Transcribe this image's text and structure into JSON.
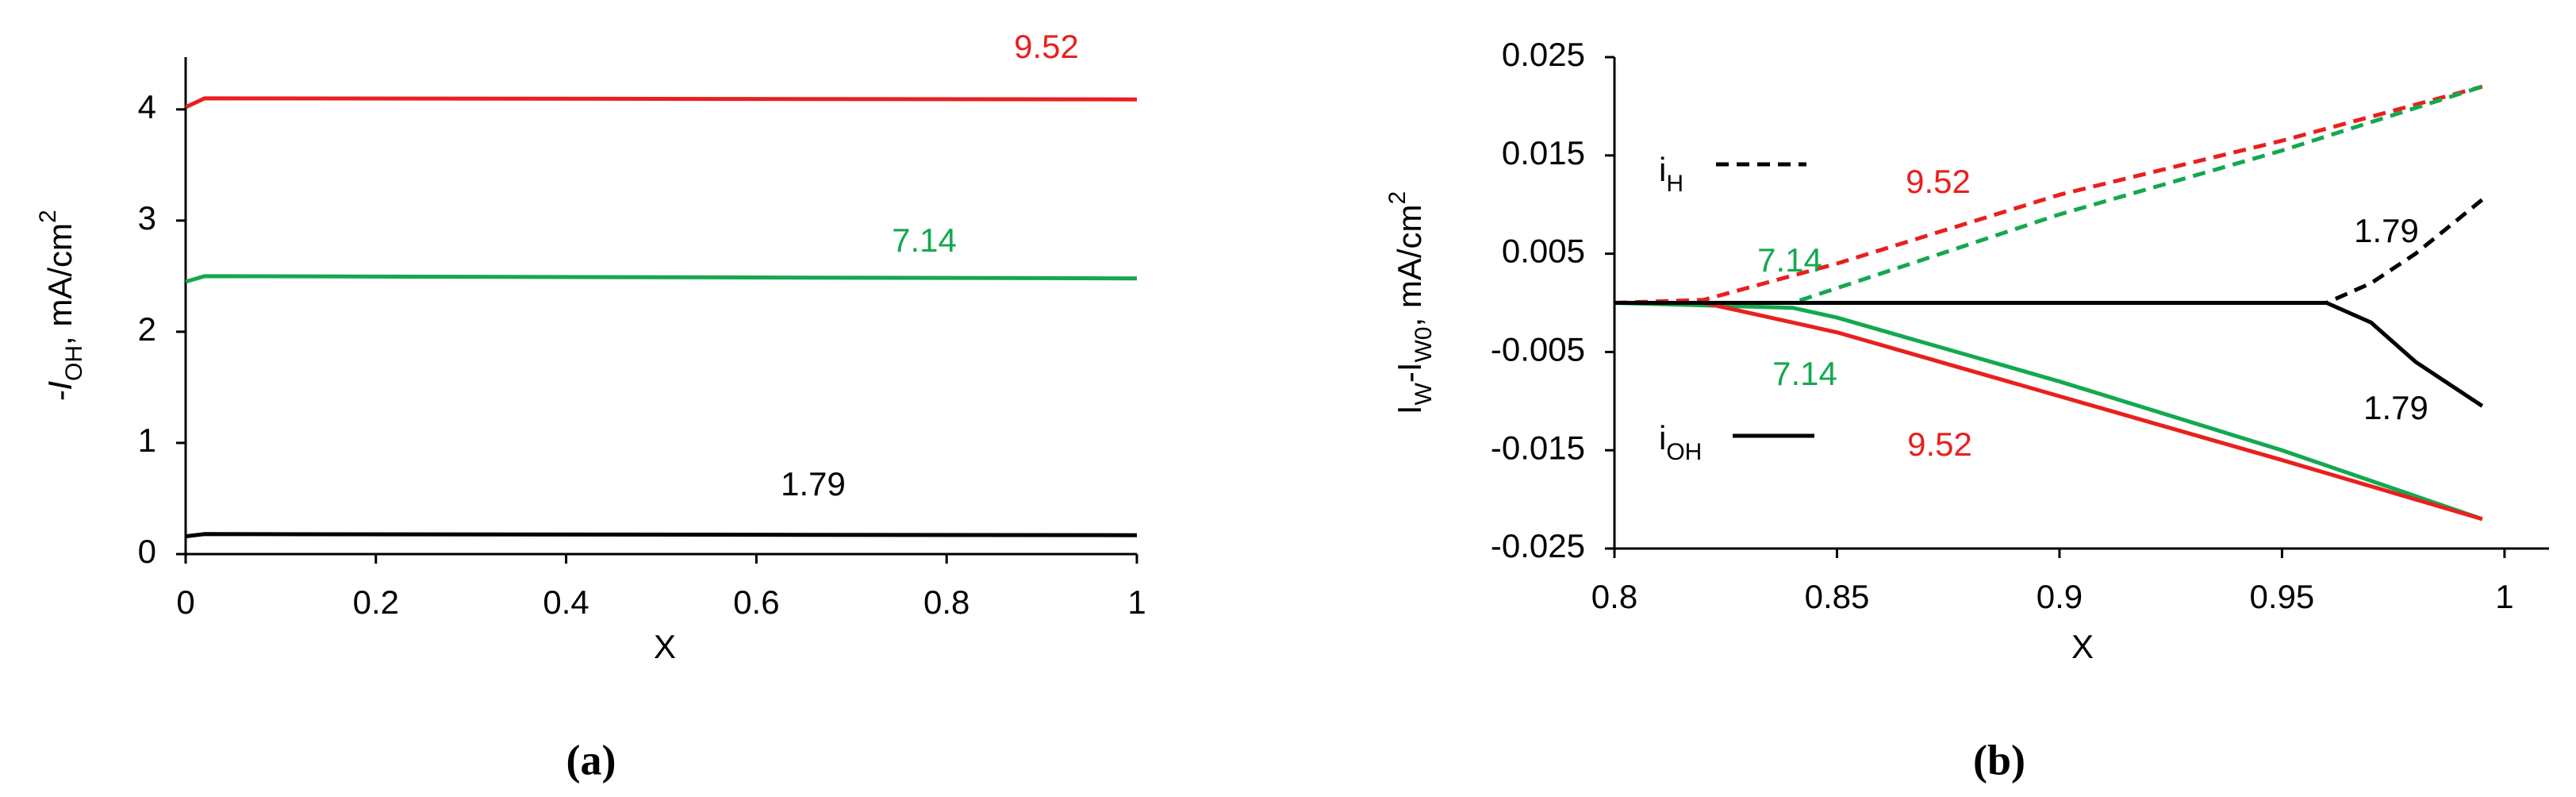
{
  "chart_data": [
    {
      "type": "line",
      "caption": "(a)",
      "x_label": "X",
      "y_label_parts": [
        {
          "text": "-I",
          "style": "italic"
        },
        {
          "text": "OH",
          "style": "sub"
        },
        {
          "text": ",  mA/cm",
          "style": null
        },
        {
          "text": "2",
          "style": "sup"
        }
      ],
      "xlim": [
        0,
        1
      ],
      "xticks": [
        0,
        0.2,
        0.4,
        0.6,
        0.8,
        1
      ],
      "ylim": [
        0,
        4.47
      ],
      "yticks": [
        0,
        1,
        2,
        3,
        4
      ],
      "grid": false,
      "series": [
        {
          "label": "9.52",
          "color": "#e8201e",
          "dashed": false,
          "x": [
            0,
            0.02,
            1
          ],
          "values": [
            4.02,
            4.1,
            4.09
          ]
        },
        {
          "label": "7.14",
          "color": "#14a84f",
          "dashed": false,
          "x": [
            0,
            0.02,
            1
          ],
          "values": [
            2.45,
            2.5,
            2.48
          ]
        },
        {
          "label": "1.79",
          "color": "#000000",
          "dashed": false,
          "x": [
            0,
            0.02,
            1
          ],
          "values": [
            0.16,
            0.18,
            0.17
          ]
        }
      ]
    },
    {
      "type": "line",
      "caption": "(b)",
      "x_label": "X",
      "y_label_parts": [
        {
          "text": "I",
          "style": null
        },
        {
          "text": "W",
          "style": "sub"
        },
        {
          "text": "-I",
          "style": null
        },
        {
          "text": "W0",
          "style": "sub"
        },
        {
          "text": ",  mA/cm",
          "style": null
        },
        {
          "text": "2",
          "style": "sup"
        }
      ],
      "xlim": [
        0.8,
        1.01
      ],
      "xticks": [
        0.8,
        0.85,
        0.9,
        0.95,
        1
      ],
      "ylim": [
        -0.025,
        0.025
      ],
      "yticks": [
        -0.025,
        -0.015,
        -0.005,
        0.005,
        0.015,
        0.025
      ],
      "grid": false,
      "legend": [
        {
          "text": "i",
          "sub": "H",
          "dashed": true
        },
        {
          "text": "i",
          "sub": "OH",
          "dashed": false
        }
      ],
      "series": [
        {
          "label": "9.52",
          "color": "#e8201e",
          "dashed": true,
          "x": [
            0.8,
            0.82,
            0.85,
            0.9,
            0.95,
            0.995
          ],
          "values": [
            0,
            0.0003,
            0.004,
            0.011,
            0.0165,
            0.022
          ]
        },
        {
          "label": "7.14",
          "color": "#14a84f",
          "dashed": true,
          "x": [
            0.8,
            0.84,
            0.85,
            0.9,
            0.95,
            0.995
          ],
          "values": [
            0,
            0,
            0.0015,
            0.009,
            0.0155,
            0.022
          ]
        },
        {
          "label": "1.79",
          "color": "#000000",
          "dashed": true,
          "x": [
            0.8,
            0.96,
            0.97,
            0.98,
            0.995
          ],
          "values": [
            0,
            0,
            0.002,
            0.005,
            0.0105
          ]
        },
        {
          "label": "7.14",
          "color": "#14a84f",
          "dashed": false,
          "x": [
            0.8,
            0.84,
            0.85,
            0.9,
            0.95,
            0.995
          ],
          "values": [
            0,
            -0.0005,
            -0.0015,
            -0.008,
            -0.015,
            -0.022
          ]
        },
        {
          "label": "9.52",
          "color": "#e8201e",
          "dashed": false,
          "x": [
            0.8,
            0.82,
            0.85,
            0.9,
            0.95,
            0.995
          ],
          "values": [
            0,
            0,
            -0.003,
            -0.0095,
            -0.016,
            -0.022
          ]
        },
        {
          "label": "1.79",
          "color": "#000000",
          "dashed": false,
          "x": [
            0.8,
            0.96,
            0.97,
            0.98,
            0.995
          ],
          "values": [
            0,
            0,
            -0.002,
            -0.006,
            -0.0105
          ]
        }
      ]
    }
  ]
}
